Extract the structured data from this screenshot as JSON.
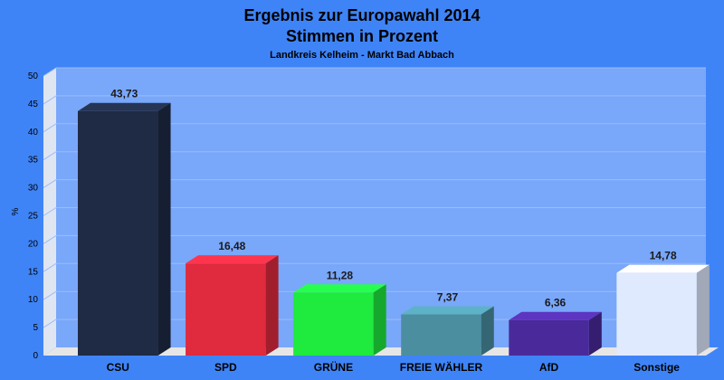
{
  "chart_data": {
    "type": "bar",
    "title": "Ergebnis zur Europawahl 2014",
    "subtitle": "Stimmen in Prozent",
    "caption": "Landkreis Kelheim - Markt Bad Abbach",
    "ylabel": "%",
    "xlabel": "",
    "ylim": [
      0,
      50
    ],
    "yticks": [
      "0",
      "5",
      "10",
      "15",
      "20",
      "25",
      "30",
      "35",
      "40",
      "45",
      "50"
    ],
    "grid": true,
    "categories": [
      "CSU",
      "SPD",
      "GRÜNE",
      "FREIE WÄHLER",
      "AfD",
      "Sonstige"
    ],
    "values": [
      43.73,
      16.48,
      11.28,
      7.37,
      6.36,
      14.78
    ],
    "value_labels": [
      "43,73",
      "16,48",
      "11,28",
      "7,37",
      "6,36",
      "14,78"
    ],
    "colors": [
      "#1f2a44",
      "#e02a3e",
      "#1fea3e",
      "#4a8ea0",
      "#4a2a9a",
      "#e0eaff"
    ]
  }
}
